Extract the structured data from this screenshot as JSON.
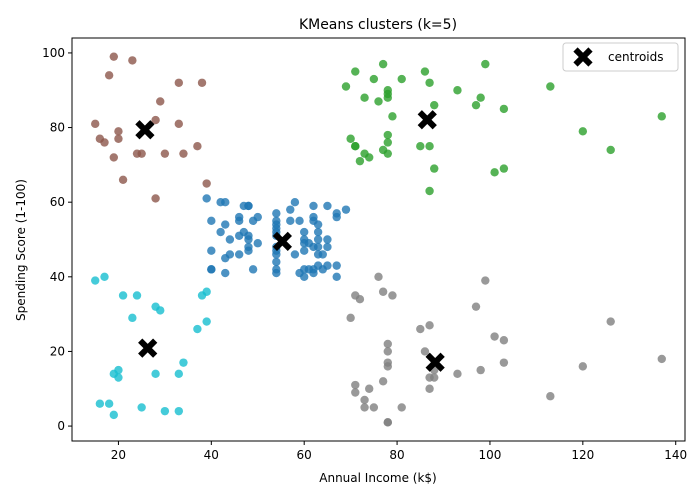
{
  "chart_data": {
    "type": "scatter",
    "title": "KMeans clusters (k=5)",
    "xlabel": "Annual Income (k$)",
    "ylabel": "Spending Score (1-100)",
    "xlim": [
      10,
      142
    ],
    "ylim": [
      -4,
      104
    ],
    "xticks": [
      20,
      40,
      60,
      80,
      100,
      120,
      140
    ],
    "yticks": [
      0,
      20,
      40,
      60,
      80,
      100
    ],
    "grid": false,
    "legend": {
      "position": "top-right",
      "label": "centroids"
    },
    "series": [
      {
        "color": "#1f77b4",
        "points": [
          [
            39,
            61
          ],
          [
            40,
            55
          ],
          [
            40,
            47
          ],
          [
            40,
            42
          ],
          [
            40,
            42
          ],
          [
            42,
            52
          ],
          [
            42,
            60
          ],
          [
            43,
            54
          ],
          [
            43,
            60
          ],
          [
            43,
            45
          ],
          [
            43,
            41
          ],
          [
            44,
            50
          ],
          [
            44,
            46
          ],
          [
            46,
            51
          ],
          [
            46,
            46
          ],
          [
            46,
            56
          ],
          [
            46,
            55
          ],
          [
            47,
            52
          ],
          [
            47,
            59
          ],
          [
            48,
            51
          ],
          [
            48,
            59
          ],
          [
            48,
            50
          ],
          [
            48,
            48
          ],
          [
            48,
            59
          ],
          [
            48,
            47
          ],
          [
            49,
            55
          ],
          [
            49,
            42
          ],
          [
            50,
            49
          ],
          [
            50,
            56
          ],
          [
            54,
            47
          ],
          [
            54,
            54
          ],
          [
            54,
            53
          ],
          [
            54,
            48
          ],
          [
            54,
            52
          ],
          [
            54,
            42
          ],
          [
            54,
            51
          ],
          [
            54,
            55
          ],
          [
            54,
            41
          ],
          [
            54,
            44
          ],
          [
            54,
            57
          ],
          [
            54,
            46
          ],
          [
            57,
            58
          ],
          [
            57,
            55
          ],
          [
            58,
            60
          ],
          [
            58,
            46
          ],
          [
            59,
            55
          ],
          [
            59,
            41
          ],
          [
            60,
            49
          ],
          [
            60,
            40
          ],
          [
            60,
            42
          ],
          [
            60,
            52
          ],
          [
            60,
            47
          ],
          [
            60,
            50
          ],
          [
            61,
            42
          ],
          [
            61,
            49
          ],
          [
            62,
            41
          ],
          [
            62,
            48
          ],
          [
            62,
            59
          ],
          [
            62,
            55
          ],
          [
            62,
            56
          ],
          [
            62,
            42
          ],
          [
            63,
            50
          ],
          [
            63,
            46
          ],
          [
            63,
            43
          ],
          [
            63,
            48
          ],
          [
            63,
            52
          ],
          [
            63,
            54
          ],
          [
            64,
            42
          ],
          [
            64,
            46
          ],
          [
            65,
            48
          ],
          [
            65,
            50
          ],
          [
            65,
            43
          ],
          [
            65,
            59
          ],
          [
            67,
            43
          ],
          [
            67,
            57
          ],
          [
            67,
            56
          ],
          [
            67,
            40
          ],
          [
            69,
            58
          ]
        ]
      },
      {
        "color": "#2ca02c",
        "points": [
          [
            69,
            91
          ],
          [
            70,
            77
          ],
          [
            71,
            95
          ],
          [
            71,
            75
          ],
          [
            71,
            75
          ],
          [
            72,
            71
          ],
          [
            73,
            88
          ],
          [
            73,
            73
          ],
          [
            74,
            72
          ],
          [
            75,
            93
          ],
          [
            76,
            87
          ],
          [
            77,
            97
          ],
          [
            77,
            74
          ],
          [
            78,
            90
          ],
          [
            78,
            88
          ],
          [
            78,
            76
          ],
          [
            78,
            89
          ],
          [
            78,
            78
          ],
          [
            78,
            73
          ],
          [
            79,
            83
          ],
          [
            81,
            93
          ],
          [
            85,
            75
          ],
          [
            86,
            95
          ],
          [
            87,
            63
          ],
          [
            87,
            75
          ],
          [
            87,
            92
          ],
          [
            88,
            86
          ],
          [
            88,
            69
          ],
          [
            93,
            90
          ],
          [
            97,
            86
          ],
          [
            98,
            88
          ],
          [
            99,
            97
          ],
          [
            101,
            68
          ],
          [
            103,
            85
          ],
          [
            103,
            69
          ],
          [
            113,
            91
          ],
          [
            120,
            79
          ],
          [
            126,
            74
          ],
          [
            137,
            83
          ]
        ]
      },
      {
        "color": "#7f7f7f",
        "points": [
          [
            70,
            29
          ],
          [
            71,
            35
          ],
          [
            71,
            11
          ],
          [
            71,
            9
          ],
          [
            72,
            34
          ],
          [
            73,
            5
          ],
          [
            73,
            7
          ],
          [
            74,
            10
          ],
          [
            75,
            5
          ],
          [
            76,
            40
          ],
          [
            77,
            12
          ],
          [
            77,
            36
          ],
          [
            78,
            22
          ],
          [
            78,
            17
          ],
          [
            78,
            20
          ],
          [
            78,
            16
          ],
          [
            78,
            1
          ],
          [
            78,
            1
          ],
          [
            79,
            35
          ],
          [
            81,
            5
          ],
          [
            85,
            26
          ],
          [
            86,
            20
          ],
          [
            87,
            27
          ],
          [
            87,
            13
          ],
          [
            87,
            10
          ],
          [
            88,
            13
          ],
          [
            88,
            15
          ],
          [
            93,
            14
          ],
          [
            97,
            32
          ],
          [
            98,
            15
          ],
          [
            99,
            39
          ],
          [
            101,
            24
          ],
          [
            103,
            17
          ],
          [
            103,
            23
          ],
          [
            113,
            8
          ],
          [
            120,
            16
          ],
          [
            126,
            28
          ],
          [
            137,
            18
          ]
        ]
      },
      {
        "color": "#8c564b",
        "points": [
          [
            15,
            81
          ],
          [
            16,
            77
          ],
          [
            17,
            76
          ],
          [
            18,
            94
          ],
          [
            19,
            72
          ],
          [
            19,
            99
          ],
          [
            20,
            77
          ],
          [
            20,
            79
          ],
          [
            21,
            66
          ],
          [
            23,
            98
          ],
          [
            24,
            73
          ],
          [
            25,
            73
          ],
          [
            28,
            82
          ],
          [
            28,
            61
          ],
          [
            29,
            87
          ],
          [
            30,
            73
          ],
          [
            33,
            92
          ],
          [
            33,
            81
          ],
          [
            34,
            73
          ],
          [
            37,
            75
          ],
          [
            38,
            92
          ],
          [
            39,
            65
          ]
        ]
      },
      {
        "color": "#17becf",
        "points": [
          [
            15,
            39
          ],
          [
            16,
            6
          ],
          [
            17,
            40
          ],
          [
            18,
            6
          ],
          [
            19,
            3
          ],
          [
            19,
            14
          ],
          [
            20,
            15
          ],
          [
            20,
            13
          ],
          [
            21,
            35
          ],
          [
            23,
            29
          ],
          [
            24,
            35
          ],
          [
            25,
            5
          ],
          [
            28,
            14
          ],
          [
            28,
            32
          ],
          [
            29,
            31
          ],
          [
            30,
            4
          ],
          [
            33,
            4
          ],
          [
            33,
            14
          ],
          [
            34,
            17
          ],
          [
            37,
            26
          ],
          [
            38,
            35
          ],
          [
            39,
            36
          ],
          [
            39,
            28
          ]
        ]
      }
    ],
    "centroids": [
      [
        55.3,
        49.5
      ],
      [
        86.5,
        82.1
      ],
      [
        88.2,
        17.1
      ],
      [
        25.7,
        79.4
      ],
      [
        26.3,
        20.9
      ]
    ]
  }
}
